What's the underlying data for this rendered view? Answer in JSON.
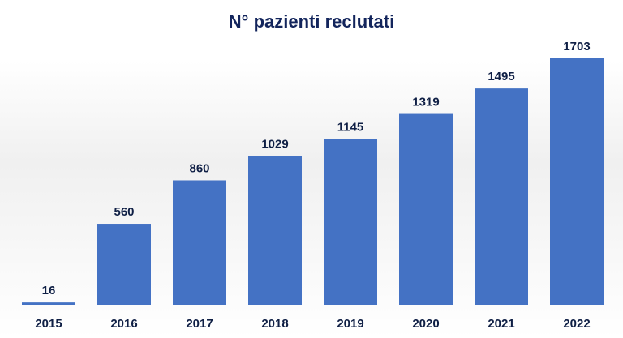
{
  "chart_data": {
    "type": "bar",
    "title": "N° pazienti reclutati",
    "xlabel": "",
    "ylabel": "",
    "categories": [
      "2015",
      "2016",
      "2017",
      "2018",
      "2019",
      "2020",
      "2021",
      "2022"
    ],
    "values": [
      16,
      560,
      860,
      1029,
      1145,
      1319,
      1495,
      1703
    ],
    "ylim": [
      0,
      1703
    ],
    "grid": false,
    "legend": "none",
    "bar_color": "#4472c4",
    "text_color": "#0f1f45"
  }
}
